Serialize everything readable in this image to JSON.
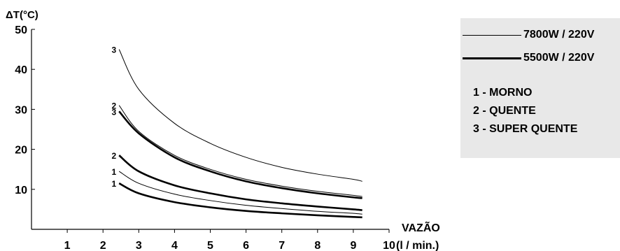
{
  "chart_data": {
    "type": "line",
    "title": "",
    "ylabel": "ΔT(°C)",
    "xlabel": "VAZÃO",
    "xunit": "(l / min.)",
    "xlim": [
      0,
      10
    ],
    "ylim": [
      0,
      50
    ],
    "xticks": [
      1,
      2,
      3,
      4,
      5,
      6,
      7,
      8,
      9,
      10
    ],
    "yticks": [
      10,
      20,
      30,
      40,
      50
    ],
    "grid": false,
    "legend_position": "right",
    "series": [
      {
        "name": "7800W / 220V",
        "style": "thin",
        "mode": "3",
        "x": [
          2.45,
          3,
          4,
          5,
          6,
          7,
          8,
          9,
          9.25
        ],
        "y": [
          45,
          35,
          26.5,
          21.5,
          18,
          15.5,
          13.8,
          12.5,
          12
        ]
      },
      {
        "name": "7800W / 220V",
        "style": "thin",
        "mode": "2",
        "x": [
          2.45,
          3,
          4,
          5,
          6,
          7,
          8,
          9,
          9.25
        ],
        "y": [
          31,
          24.5,
          18.5,
          15,
          12.5,
          10.8,
          9.5,
          8.5,
          8.2
        ]
      },
      {
        "name": "7800W / 220V",
        "style": "thin",
        "mode": "1",
        "x": [
          2.45,
          3,
          4,
          5,
          6,
          7,
          8,
          9,
          9.25
        ],
        "y": [
          14.5,
          11.5,
          8.8,
          7.2,
          6,
          5.2,
          4.5,
          4,
          3.8
        ]
      },
      {
        "name": "5500W / 220V",
        "style": "thick",
        "mode": "3",
        "x": [
          2.45,
          3,
          4,
          5,
          6,
          7,
          8,
          9,
          9.25
        ],
        "y": [
          29.5,
          24,
          18,
          14.5,
          12,
          10.3,
          9,
          8,
          7.8
        ]
      },
      {
        "name": "5500W / 220V",
        "style": "thick",
        "mode": "2",
        "x": [
          2.45,
          3,
          4,
          5,
          6,
          7,
          8,
          9,
          9.25
        ],
        "y": [
          18.5,
          14.5,
          11,
          9,
          7.5,
          6.5,
          5.7,
          5,
          4.8
        ]
      },
      {
        "name": "5500W / 220V",
        "style": "thick",
        "mode": "1",
        "x": [
          2.45,
          3,
          4,
          5,
          6,
          7,
          8,
          9,
          9.25
        ],
        "y": [
          11.5,
          9,
          6.8,
          5.5,
          4.6,
          4,
          3.5,
          3.1,
          3
        ]
      }
    ]
  },
  "legend": {
    "entries": [
      {
        "label": "7800W / 220V",
        "style": "thin"
      },
      {
        "label": "5500W / 220V",
        "style": "thick"
      }
    ],
    "modes": [
      "1 - MORNO",
      "2 - QUENTE",
      "3 - SUPER QUENTE"
    ]
  },
  "colors": {
    "line": "#000000",
    "legend_bg": "#e8e8e8"
  }
}
